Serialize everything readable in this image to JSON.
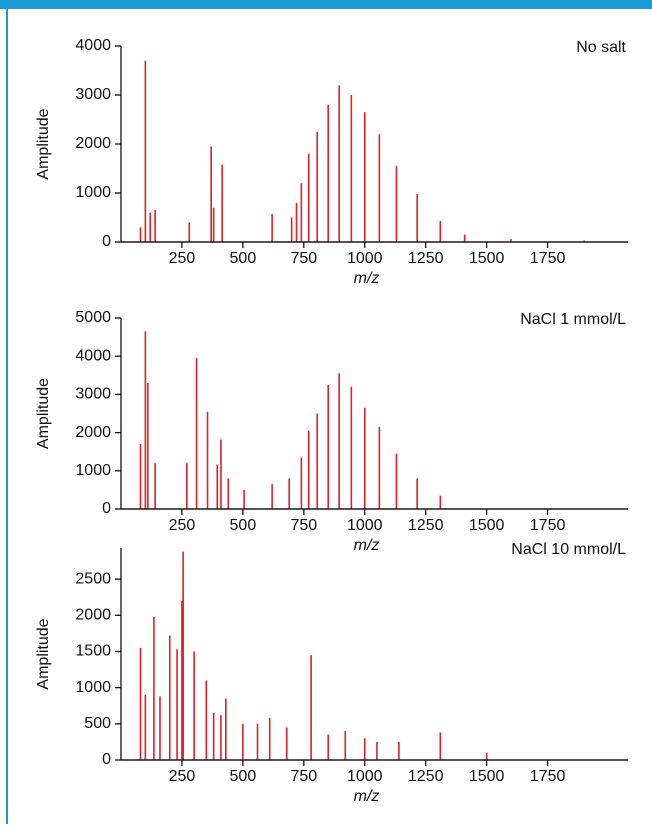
{
  "chart_data": [
    {
      "type": "stem",
      "annotation": "No salt",
      "x_label": "m/z",
      "y_label": "Amplitude",
      "color": "#e31e24",
      "x": [
        80,
        100,
        120,
        140,
        280,
        370,
        380,
        415,
        620,
        700,
        720,
        740,
        770,
        805,
        850,
        895,
        945,
        1000,
        1060,
        1130,
        1215,
        1310,
        1410,
        1600,
        1900
      ],
      "values": [
        300,
        3700,
        600,
        650,
        400,
        1950,
        700,
        1580,
        570,
        500,
        800,
        1200,
        1800,
        2250,
        2800,
        3200,
        3000,
        2650,
        2200,
        1550,
        980,
        430,
        150,
        60,
        30
      ],
      "xlim": [
        0,
        2080
      ],
      "xticks": [
        250,
        500,
        750,
        1000,
        1250,
        1500,
        1750
      ],
      "ylim": [
        0,
        4000
      ],
      "yticks": [
        0,
        1000,
        2000,
        3000,
        4000
      ]
    },
    {
      "type": "stem",
      "annotation": "NaCl 1 mmol/L",
      "x_label": "m/z",
      "y_label": "Amplitude",
      "color": "#e31e24",
      "x": [
        80,
        100,
        110,
        140,
        270,
        310,
        355,
        395,
        410,
        440,
        505,
        620,
        690,
        740,
        770,
        805,
        850,
        895,
        945,
        1000,
        1060,
        1130,
        1215,
        1310
      ],
      "values": [
        1700,
        4650,
        3300,
        1200,
        1200,
        3950,
        2550,
        1150,
        1820,
        800,
        500,
        650,
        800,
        1350,
        2050,
        2500,
        3250,
        3550,
        3200,
        2650,
        2150,
        1450,
        800,
        350
      ],
      "xlim": [
        0,
        2080
      ],
      "xticks": [
        250,
        500,
        750,
        1000,
        1250,
        1500,
        1750
      ],
      "ylim": [
        0,
        5000
      ],
      "yticks": [
        0,
        1000,
        2000,
        3000,
        4000,
        5000
      ]
    },
    {
      "type": "stem",
      "annotation": "NaCl 10 mmol/L",
      "x_label": "m/z",
      "y_label": "Amplitude",
      "color": "#e31e24",
      "x": [
        80,
        100,
        135,
        160,
        200,
        230,
        250,
        255,
        300,
        350,
        380,
        410,
        430,
        500,
        560,
        610,
        680,
        780,
        850,
        920,
        1000,
        1050,
        1140,
        1310,
        1500
      ],
      "values": [
        1550,
        900,
        1980,
        880,
        1720,
        1530,
        2200,
        2880,
        1500,
        1100,
        650,
        620,
        850,
        500,
        500,
        580,
        450,
        1450,
        350,
        400,
        300,
        250,
        250,
        380,
        100
      ],
      "xlim": [
        0,
        2080
      ],
      "xticks": [
        250,
        500,
        750,
        1000,
        1250,
        1500,
        1750
      ],
      "ylim": [
        0,
        2930
      ],
      "yticks": [
        0,
        500,
        1000,
        1500,
        2000,
        2500
      ]
    }
  ]
}
